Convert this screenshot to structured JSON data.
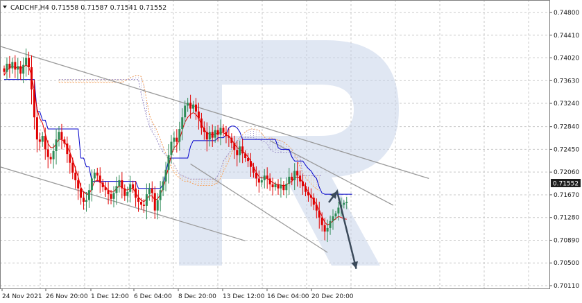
{
  "header": {
    "symbol_timeframe": "CADCHF,H4",
    "ohlc": "0.71558 0.71587 0.71541 0.71552"
  },
  "price_badge": "0.71552",
  "colors": {
    "bull_candle": "#2e8b57",
    "bear_candle": "#e00000",
    "kijun": "#0000cc",
    "tenkan": "#e00000",
    "cloud_bear": "#f4a460",
    "cloud_bull": "#9b8fc8",
    "channel": "#999999",
    "forecast_arrow": "#3b4a5a",
    "watermark": "#c7d3ea",
    "grid": "#c8c8c8"
  },
  "chart_data": {
    "type": "candlestick",
    "symbol": "CADCHF",
    "timeframe": "H4",
    "ylim": [
      0.7005,
      0.7492
    ],
    "y_ticks": [
      0.748,
      0.7441,
      0.7402,
      0.7363,
      0.7324,
      0.7284,
      0.7245,
      0.7206,
      0.7167,
      0.7128,
      0.7089,
      0.705,
      0.7011
    ],
    "x_ticks": [
      "24 Nov 2021",
      "26 Nov 20:00",
      "1 Dec 12:00",
      "6 Dec 04:00",
      "8 Dec 20:00",
      "13 Dec 12:00",
      "16 Dec 04:00",
      "20 Dec 20:00"
    ],
    "grid": true,
    "last_price": 0.71552,
    "candles_close": [
      0.7378,
      0.7392,
      0.7384,
      0.7395,
      0.7382,
      0.7388,
      0.7375,
      0.739,
      0.7402,
      0.7386,
      0.7348,
      0.73,
      0.7262,
      0.7258,
      0.7268,
      0.7245,
      0.7232,
      0.7228,
      0.7242,
      0.7262,
      0.7275,
      0.7262,
      0.7255,
      0.7237,
      0.7222,
      0.7205,
      0.7192,
      0.7178,
      0.7162,
      0.7155,
      0.7158,
      0.7175,
      0.7195,
      0.7205,
      0.72,
      0.7188,
      0.718,
      0.7175,
      0.7168,
      0.716,
      0.717,
      0.7182,
      0.7192,
      0.7178,
      0.7165,
      0.7172,
      0.7185,
      0.7178,
      0.7162,
      0.7155,
      0.715,
      0.7148,
      0.7168,
      0.7178,
      0.717,
      0.714,
      0.7158,
      0.7175,
      0.719,
      0.721,
      0.7235,
      0.7258,
      0.7265,
      0.7258,
      0.728,
      0.73,
      0.732,
      0.7325,
      0.7315,
      0.7322,
      0.731,
      0.7298,
      0.7282,
      0.7275,
      0.7262,
      0.7275,
      0.7265,
      0.7278,
      0.727,
      0.7282,
      0.7275,
      0.7268,
      0.7265,
      0.7256,
      0.7244,
      0.7235,
      0.725,
      0.7238,
      0.723,
      0.7225,
      0.7215,
      0.7205,
      0.7195,
      0.7188,
      0.7192,
      0.72,
      0.7195,
      0.7185,
      0.718,
      0.7185,
      0.7178,
      0.7184,
      0.7175,
      0.7186,
      0.7198,
      0.7192,
      0.7208,
      0.72,
      0.719,
      0.7182,
      0.7172,
      0.7166,
      0.7162,
      0.715,
      0.714,
      0.7128,
      0.7115,
      0.7104,
      0.711,
      0.7122,
      0.713,
      0.7135,
      0.7145,
      0.715,
      0.7153,
      0.7155
    ],
    "kijun_sen": [
      0.7365,
      0.7365,
      0.7365,
      0.7365,
      0.7365,
      0.7365,
      0.7365,
      0.7365,
      0.7365,
      0.7365,
      0.7365,
      0.7365,
      0.731,
      0.731,
      0.7295,
      0.7295,
      0.728,
      0.728,
      0.728,
      0.728,
      0.728,
      0.728,
      0.728,
      0.728,
      0.728,
      0.728,
      0.728,
      0.728,
      0.723,
      0.723,
      0.7215,
      0.7215,
      0.719,
      0.719,
      0.719,
      0.719,
      0.719,
      0.719,
      0.719,
      0.719,
      0.719,
      0.719,
      0.719,
      0.719,
      0.719,
      0.719,
      0.719,
      0.719,
      0.719,
      0.7178,
      0.7178,
      0.7178,
      0.7178,
      0.7178,
      0.7178,
      0.7178,
      0.7178,
      0.7178,
      0.7185,
      0.7205,
      0.7228,
      0.723,
      0.723,
      0.723,
      0.723,
      0.723,
      0.723,
      0.723,
      0.725,
      0.726,
      0.726,
      0.726,
      0.726,
      0.726,
      0.726,
      0.726,
      0.726,
      0.726,
      0.7265,
      0.7265,
      0.7265,
      0.727,
      0.7282,
      0.7285,
      0.7285,
      0.7282,
      0.7275,
      0.7262,
      0.7262,
      0.7262,
      0.7262,
      0.7262,
      0.7262,
      0.7262,
      0.7262,
      0.7262,
      0.7262,
      0.7262,
      0.7262,
      0.7262,
      0.7248,
      0.7245,
      0.7245,
      0.7245,
      0.7245,
      0.7232,
      0.7225,
      0.7225,
      0.7225,
      0.7225,
      0.7218,
      0.7212,
      0.7208,
      0.72,
      0.7195,
      0.718,
      0.717,
      0.7168,
      0.7168,
      0.7168,
      0.7168,
      0.7168,
      0.7168,
      0.7168,
      0.7168,
      0.7168,
      0.7168,
      0.7168
    ],
    "tenkan_sen": [
      0.7372,
      0.738,
      0.7385,
      0.7388,
      0.7385,
      0.7386,
      0.7384,
      0.7386,
      0.739,
      0.7386,
      0.7372,
      0.7345,
      0.7315,
      0.7298,
      0.729,
      0.7272,
      0.7255,
      0.7248,
      0.7248,
      0.7255,
      0.7262,
      0.7262,
      0.7258,
      0.725,
      0.724,
      0.7228,
      0.7212,
      0.7198,
      0.718,
      0.7172,
      0.7168,
      0.7168,
      0.7178,
      0.719,
      0.7192,
      0.719,
      0.7185,
      0.718,
      0.7175,
      0.7172,
      0.7172,
      0.7178,
      0.7182,
      0.718,
      0.7176,
      0.7175,
      0.7178,
      0.7178,
      0.717,
      0.7163,
      0.7158,
      0.7155,
      0.716,
      0.7165,
      0.7165,
      0.7158,
      0.716,
      0.7168,
      0.7178,
      0.7195,
      0.7215,
      0.7235,
      0.7248,
      0.7252,
      0.7262,
      0.7278,
      0.7292,
      0.73,
      0.7305,
      0.7308,
      0.7305,
      0.7298,
      0.7288,
      0.728,
      0.7272,
      0.7272,
      0.727,
      0.7272,
      0.7272,
      0.7274,
      0.7274,
      0.727,
      0.7268,
      0.7262,
      0.7255,
      0.7248,
      0.7245,
      0.7242,
      0.7238,
      0.7232,
      0.7225,
      0.7215,
      0.7206,
      0.7198,
      0.7196,
      0.7196,
      0.7195,
      0.7192,
      0.7188,
      0.7186,
      0.7184,
      0.7184,
      0.7182,
      0.7184,
      0.7188,
      0.719,
      0.7196,
      0.7198,
      0.7195,
      0.7188,
      0.718,
      0.7172,
      0.7165,
      0.7158,
      0.715,
      0.714,
      0.713,
      0.712,
      0.7115,
      0.7118,
      0.7122,
      0.7126,
      0.713,
      0.7128,
      0.7126,
      0.7125
    ],
    "senkou_a": [
      0.736,
      0.736,
      0.736,
      0.736,
      0.736,
      0.736,
      0.736,
      0.736,
      0.736,
      0.736,
      0.736,
      0.736,
      0.736,
      0.736,
      0.736,
      0.736,
      0.736,
      0.736,
      0.736,
      0.736,
      0.736,
      0.736,
      0.736,
      0.736,
      0.7362,
      0.7365,
      0.7368,
      0.737,
      0.7372,
      0.7372,
      0.737,
      0.7355,
      0.733,
      0.7305,
      0.7292,
      0.7285,
      0.7275,
      0.7262,
      0.725,
      0.7238,
      0.7225,
      0.7215,
      0.7205,
      0.72,
      0.7196,
      0.7192,
      0.719,
      0.719,
      0.7188,
      0.7186,
      0.7184,
      0.7183,
      0.7183,
      0.7183,
      0.7183,
      0.7183,
      0.7183,
      0.7185,
      0.7188,
      0.7196,
      0.7206,
      0.7216,
      0.7226,
      0.7238,
      0.725,
      0.726,
      0.7266,
      0.727,
      0.7275,
      0.7278,
      0.728,
      0.728,
      0.7279,
      0.7278,
      0.7272,
      0.7266,
      0.7262,
      0.7265,
      0.7264,
      0.7262,
      0.7261,
      0.726,
      0.7258,
      0.7254,
      0.725,
      0.7245,
      0.7236,
      0.7226,
      0.7215,
      0.7205,
      0.7196,
      0.7191,
      0.7186,
      0.7181,
      0.7177,
      0.7174
    ],
    "senkou_b": [
      0.7365,
      0.7365,
      0.7365,
      0.7365,
      0.7365,
      0.7365,
      0.7365,
      0.7365,
      0.7365,
      0.7365,
      0.7365,
      0.7365,
      0.7365,
      0.7365,
      0.7365,
      0.7365,
      0.7365,
      0.7365,
      0.7365,
      0.7365,
      0.7365,
      0.7365,
      0.7365,
      0.7365,
      0.7365,
      0.7365,
      0.7365,
      0.7365,
      0.7365,
      0.7365,
      0.734,
      0.732,
      0.73,
      0.7285,
      0.7275,
      0.7268,
      0.7258,
      0.7248,
      0.724,
      0.7235,
      0.7228,
      0.7222,
      0.722,
      0.721,
      0.7202,
      0.72,
      0.7198,
      0.7196,
      0.7194,
      0.7194,
      0.7194,
      0.7194,
      0.7194,
      0.7194,
      0.7194,
      0.7194,
      0.7194,
      0.7194,
      0.72,
      0.721,
      0.7225,
      0.7232,
      0.7238,
      0.7245,
      0.7252,
      0.726,
      0.7262,
      0.7265,
      0.7265,
      0.7265,
      0.7265,
      0.7265,
      0.7262,
      0.7262,
      0.726,
      0.7258,
      0.7255,
      0.7245,
      0.7242,
      0.724,
      0.724,
      0.724,
      0.724,
      0.724,
      0.724,
      0.7232,
      0.7232,
      0.7232,
      0.7232,
      0.72,
      0.72,
      0.72,
      0.72,
      0.72,
      0.72,
      0.72,
      0.72
    ],
    "cloud_start_candle": 20,
    "channel_lines": [
      {
        "x1": -1.5,
        "y1": 0.7422,
        "x2": 155,
        "y2": 0.7195
      },
      {
        "x1": -1.5,
        "y1": 0.7215,
        "x2": 88,
        "y2": 0.7088
      },
      {
        "x1": 97,
        "y1": 0.726,
        "x2": 142,
        "y2": 0.7149
      },
      {
        "x1": 68,
        "y1": 0.722,
        "x2": 118,
        "y2": 0.7068
      }
    ],
    "forecast": [
      {
        "x": 118.5,
        "y": 0.7154
      },
      {
        "x": 121.5,
        "y": 0.7173
      },
      {
        "x": 128.5,
        "y": 0.704
      }
    ]
  }
}
